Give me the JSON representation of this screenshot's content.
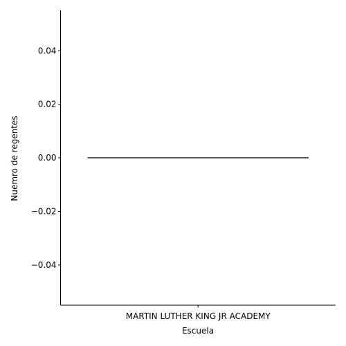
{
  "chart_data": {
    "type": "box",
    "categories": [
      "MARTIN LUTHER KING JR ACADEMY"
    ],
    "series": [
      {
        "values": [
          [
            0,
            0,
            0,
            0,
            0
          ]
        ]
      }
    ],
    "box_stats_order": [
      "min",
      "q1",
      "median",
      "q3",
      "max"
    ],
    "xlabel": "Escuela",
    "ylabel": "Nuemro de regentes",
    "ylim": [
      -0.055,
      0.055
    ],
    "yticks": [
      -0.04,
      -0.02,
      0.0,
      0.02,
      0.04
    ],
    "ytick_labels": [
      "−0.04",
      "−0.02",
      "0.00",
      "0.02",
      "0.04"
    ],
    "grid": false,
    "colors": {
      "axis": "#000000",
      "box_line": "#3f3f3f"
    }
  }
}
